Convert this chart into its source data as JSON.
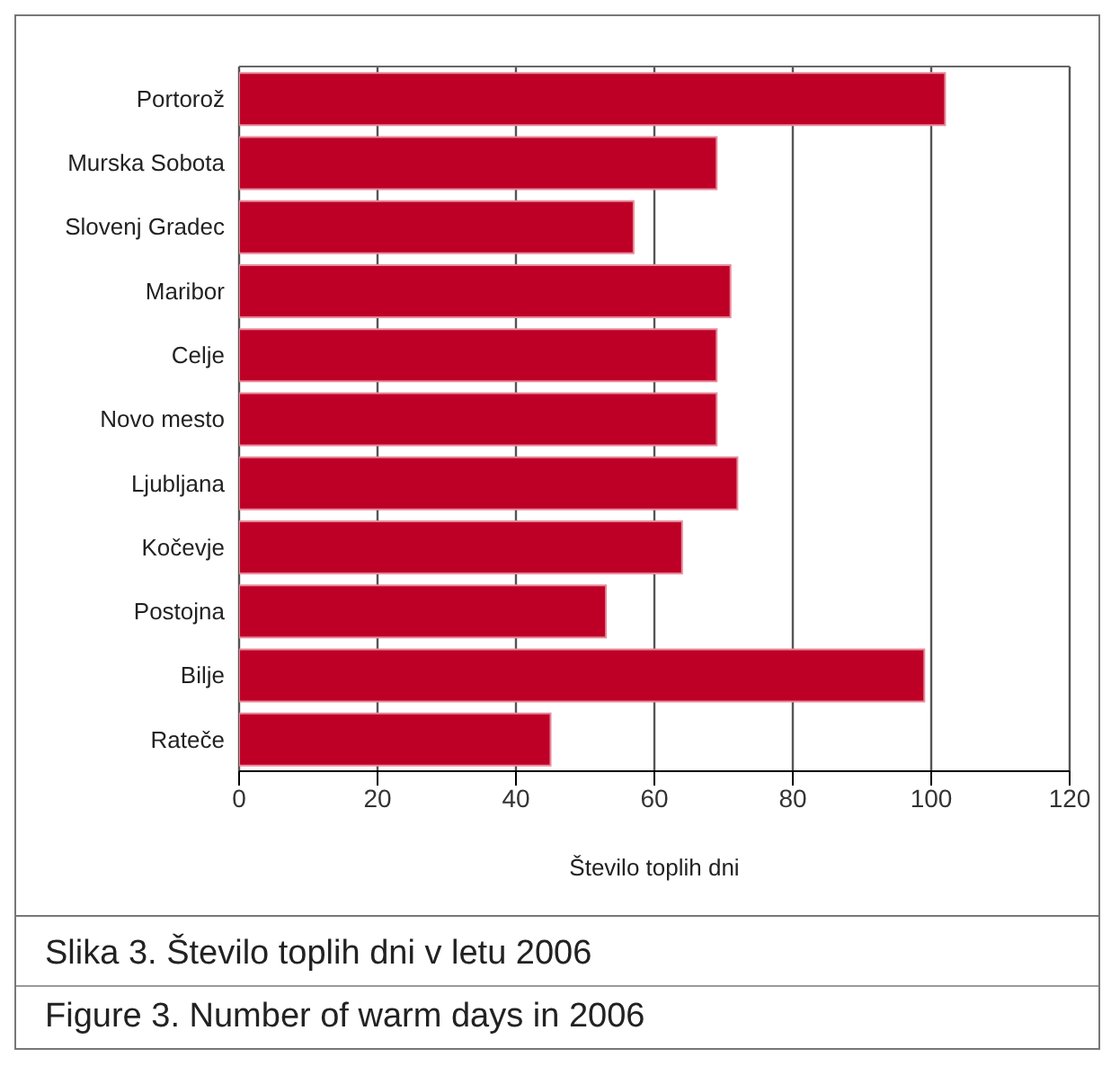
{
  "chart_data": {
    "type": "bar",
    "orientation": "horizontal",
    "title": "Slika 3. Število toplih dni v letu 2006",
    "subtitle": "Figure 3. Number of warm days in 2006",
    "xlabel": "Število toplih dni",
    "categories": [
      "Portorož",
      "Murska Sobota",
      "Slovenj Gradec",
      "Maribor",
      "Celje",
      "Novo mesto",
      "Ljubljana",
      "Kočevje",
      "Postojna",
      "Bilje",
      "Rateče"
    ],
    "values": [
      102,
      69,
      57,
      71,
      69,
      69,
      72,
      64,
      53,
      99,
      45
    ],
    "color": "#be0027",
    "xlim": [
      0,
      120
    ],
    "xticks": [
      0,
      20,
      40,
      60,
      80,
      100,
      120
    ],
    "grid": "x"
  }
}
